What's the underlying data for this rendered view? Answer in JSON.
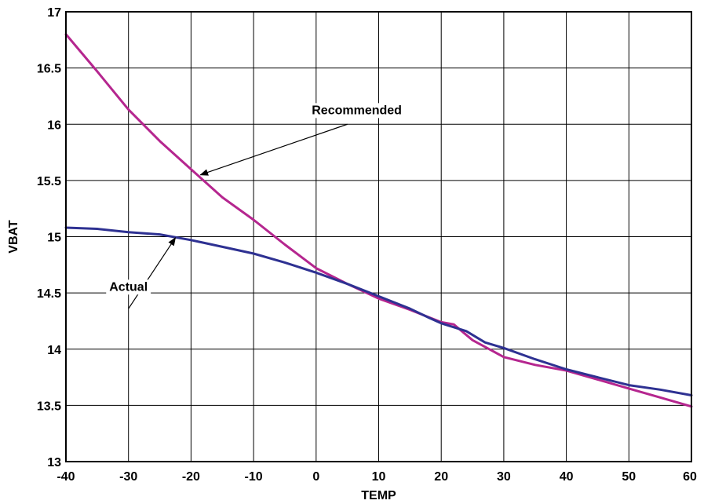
{
  "chart_data": {
    "type": "line",
    "xlabel": "TEMP",
    "ylabel": "VBAT",
    "xlim": [
      -40,
      60
    ],
    "ylim": [
      13,
      17
    ],
    "xticks": [
      -40,
      -30,
      -20,
      -10,
      0,
      10,
      20,
      30,
      40,
      50,
      60
    ],
    "yticks": [
      13,
      13.5,
      14,
      14.5,
      15,
      15.5,
      16,
      16.5,
      17
    ],
    "grid": true,
    "series": [
      {
        "key": "recommended",
        "color": "#b5268f",
        "x": [
          -40,
          -35,
          -30,
          -25,
          -20,
          -15,
          -10,
          -5,
          0,
          5,
          10,
          15,
          20,
          22,
          25,
          28,
          30,
          35,
          40,
          45,
          50,
          55,
          60
        ],
        "y": [
          16.8,
          16.47,
          16.13,
          15.85,
          15.6,
          15.35,
          15.15,
          14.93,
          14.72,
          14.58,
          14.45,
          14.35,
          14.24,
          14.22,
          14.08,
          13.99,
          13.93,
          13.86,
          13.81,
          13.73,
          13.65,
          13.57,
          13.49
        ]
      },
      {
        "key": "actual",
        "color": "#2e3192",
        "x": [
          -40,
          -35,
          -30,
          -25,
          -20,
          -15,
          -10,
          -5,
          0,
          5,
          10,
          15,
          18,
          20,
          24,
          27,
          30,
          35,
          40,
          45,
          50,
          55,
          60
        ],
        "y": [
          15.08,
          15.07,
          15.04,
          15.02,
          14.97,
          14.91,
          14.85,
          14.77,
          14.68,
          14.58,
          14.47,
          14.36,
          14.28,
          14.23,
          14.16,
          14.06,
          14.01,
          13.91,
          13.82,
          13.75,
          13.68,
          13.64,
          13.59
        ]
      }
    ],
    "annotations": [
      {
        "text": "Recommended",
        "key": "recommended",
        "text_x": 6.5,
        "text_y": 16.09,
        "arrow_from": [
          5,
          16.0
        ],
        "arrow_to": [
          -18.5,
          15.55
        ]
      },
      {
        "text": "Actual",
        "key": "actual",
        "text_x": -30,
        "text_y": 14.52,
        "arrow_from": [
          -30,
          14.36
        ],
        "arrow_to": [
          -22.5,
          14.99
        ]
      }
    ]
  }
}
